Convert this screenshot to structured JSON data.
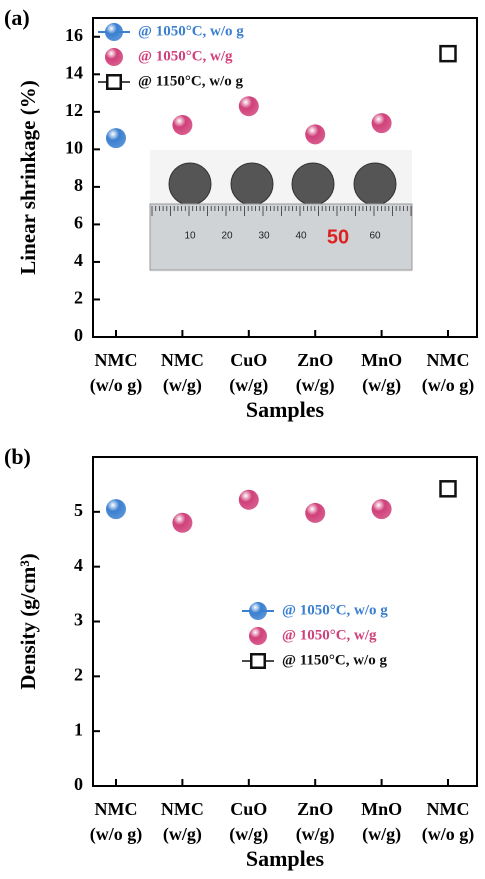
{
  "chart_data": [
    {
      "type": "scatter",
      "panel_label": "(a)",
      "y_label": "Linear shrinkage (%)",
      "x_label": "Samples",
      "categories": [
        [
          "NMC",
          "(w/o g)"
        ],
        [
          "NMC",
          "(w/g)"
        ],
        [
          "CuO",
          "(w/g)"
        ],
        [
          "ZnO",
          "(w/g)"
        ],
        [
          "MnO",
          "(w/g)"
        ],
        [
          "NMC",
          "(w/o g)"
        ]
      ],
      "ylim": [
        0,
        17
      ],
      "yticks": [
        0,
        2,
        4,
        6,
        8,
        10,
        12,
        14,
        16
      ],
      "grid": false,
      "legend": "upper left",
      "inset_ruler_labels": [
        "10",
        "20",
        "30",
        "40",
        "50",
        "60"
      ],
      "series": [
        {
          "name": "@ 1050°C, w/o g",
          "color": "#3a7fd0",
          "marker": "sphere",
          "values": [
            10.6,
            null,
            null,
            null,
            null,
            null
          ]
        },
        {
          "name": "@ 1050°C, w/g",
          "color": "#d0407a",
          "marker": "sphere",
          "values": [
            null,
            11.3,
            12.3,
            10.8,
            11.4,
            null
          ]
        },
        {
          "name": "@ 1150°C, w/o g",
          "color": "#111111",
          "marker": "open-square",
          "values": [
            null,
            null,
            null,
            null,
            null,
            15.1
          ]
        }
      ]
    },
    {
      "type": "scatter",
      "panel_label": "(b)",
      "y_label": "Density (g/cm³)",
      "x_label": "Samples",
      "categories": [
        [
          "NMC",
          "(w/o g)"
        ],
        [
          "NMC",
          "(w/g)"
        ],
        [
          "CuO",
          "(w/g)"
        ],
        [
          "ZnO",
          "(w/g)"
        ],
        [
          "MnO",
          "(w/g)"
        ],
        [
          "NMC",
          "(w/o g)"
        ]
      ],
      "ylim": [
        0,
        6
      ],
      "yticks": [
        0,
        1,
        2,
        3,
        4,
        5
      ],
      "grid": false,
      "legend": "center right",
      "series": [
        {
          "name": "@ 1050°C, w/o g",
          "color": "#3a7fd0",
          "marker": "sphere",
          "values": [
            5.05,
            null,
            null,
            null,
            null,
            null
          ]
        },
        {
          "name": "@ 1050°C, w/g",
          "color": "#d0407a",
          "marker": "sphere",
          "values": [
            null,
            4.8,
            5.22,
            4.98,
            5.05,
            null
          ]
        },
        {
          "name": "@ 1150°C, w/o g",
          "color": "#111111",
          "marker": "open-square",
          "values": [
            null,
            null,
            null,
            null,
            null,
            5.42
          ]
        }
      ]
    }
  ]
}
